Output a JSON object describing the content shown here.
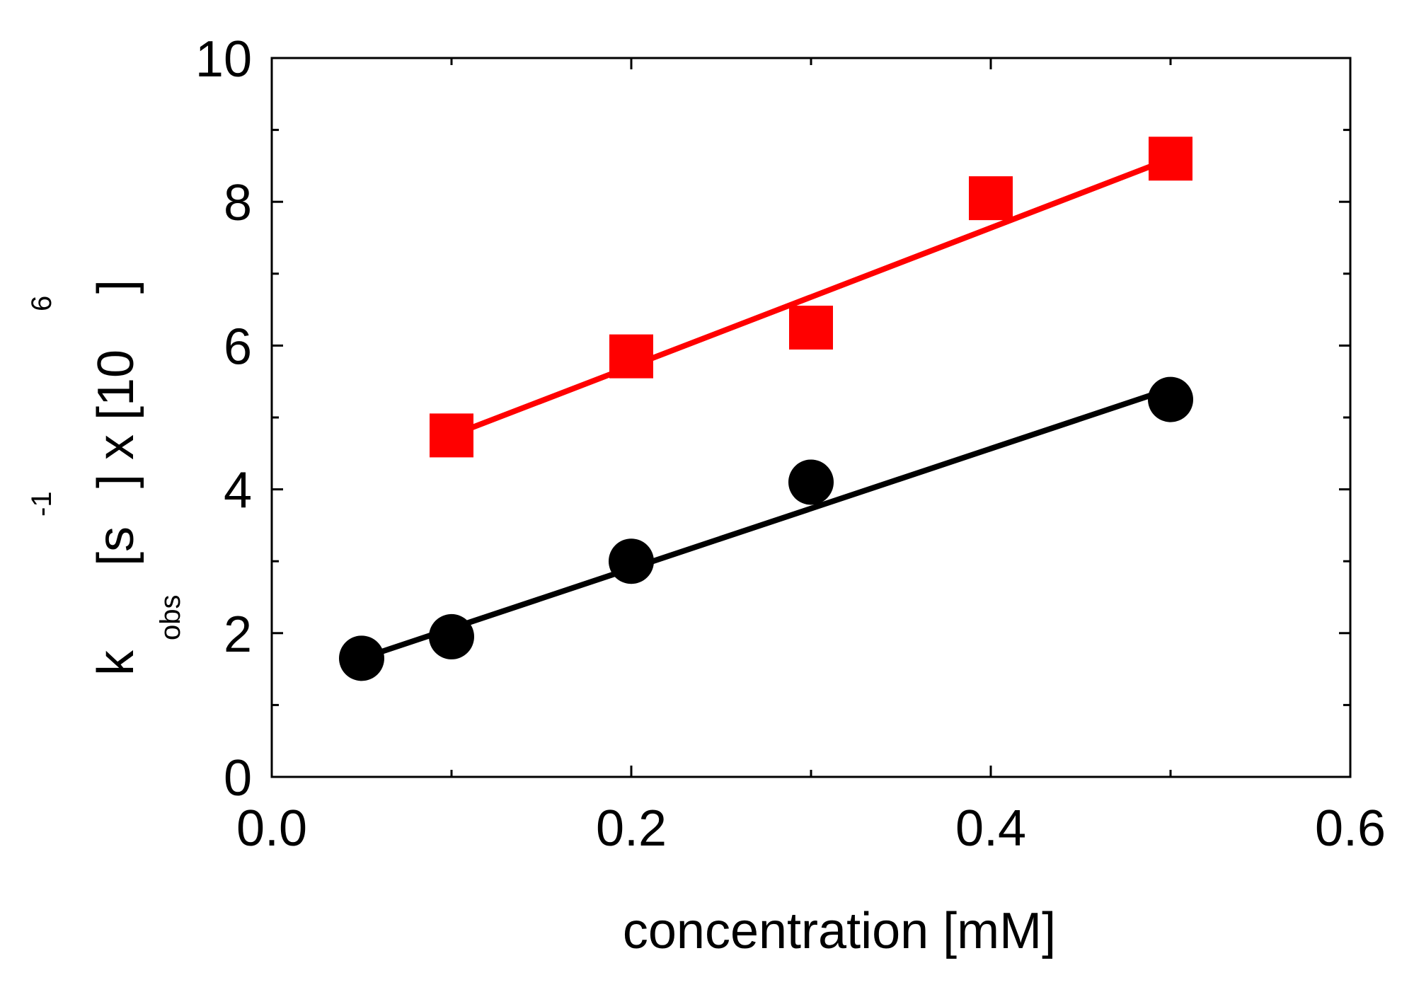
{
  "chart_data": {
    "type": "scatter",
    "title": "",
    "xlabel": "concentration [mM]",
    "ylabel": {
      "k": "k",
      "sub": "obs",
      "open1": "[s",
      "exp1": "-1",
      "mid": "] x [10",
      "exp2": "6",
      "close": "]"
    },
    "xlim": [
      0.0,
      0.6
    ],
    "ylim": [
      0,
      10
    ],
    "x_ticks": [
      0.0,
      0.2,
      0.4,
      0.6
    ],
    "x_tick_labels": [
      "0.0",
      "0.2",
      "0.4",
      "0.6"
    ],
    "x_minor_ticks": [
      0.1,
      0.3,
      0.5
    ],
    "y_ticks": [
      0,
      2,
      4,
      6,
      8,
      10
    ],
    "y_tick_labels": [
      "0",
      "2",
      "4",
      "6",
      "8",
      "10"
    ],
    "y_minor_ticks": [
      1,
      3,
      5,
      7,
      9
    ],
    "grid": false,
    "legend": "none",
    "series": [
      {
        "name": "red squares",
        "marker": "square",
        "color": "#ff0000",
        "x": [
          0.1,
          0.2,
          0.3,
          0.4,
          0.5
        ],
        "y": [
          4.75,
          5.85,
          6.25,
          8.05,
          8.6
        ],
        "fit": {
          "x": [
            0.1,
            0.5
          ],
          "y": [
            4.75,
            8.6
          ]
        }
      },
      {
        "name": "black circles",
        "marker": "circle",
        "color": "#000000",
        "x": [
          0.05,
          0.1,
          0.2,
          0.3,
          0.5
        ],
        "y": [
          1.65,
          1.95,
          3.0,
          4.1,
          5.25
        ],
        "fit": {
          "x": [
            0.05,
            0.5
          ],
          "y": [
            1.65,
            5.4
          ]
        }
      }
    ]
  }
}
